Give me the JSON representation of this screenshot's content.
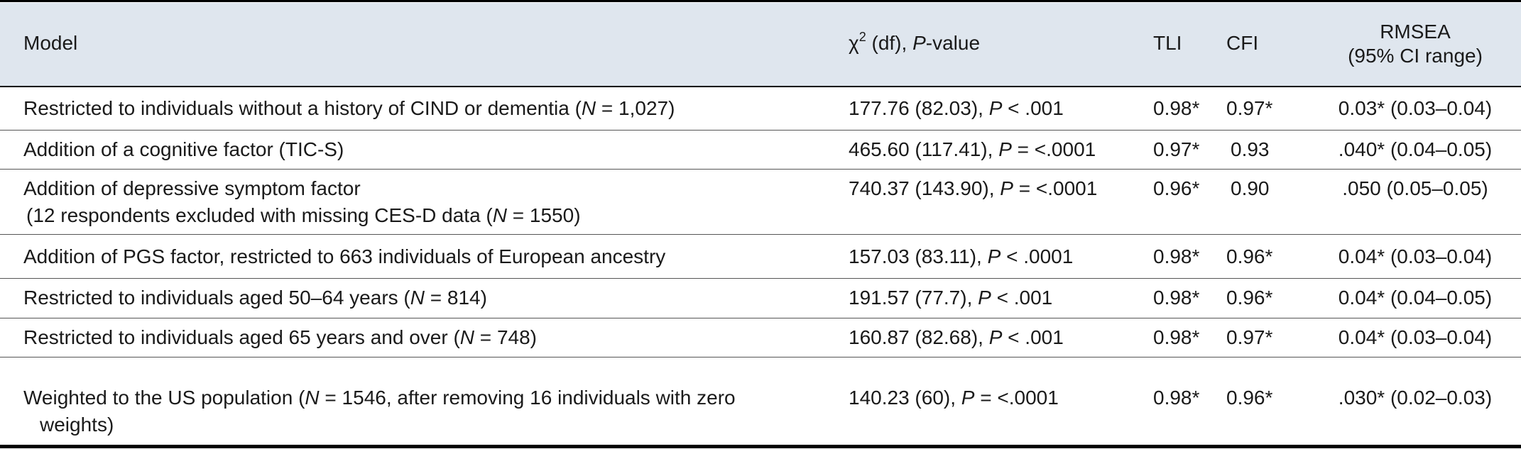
{
  "headers": {
    "model": "Model",
    "chi_symbol": "χ",
    "chi_sup": "2",
    "chi_df": " (df), ",
    "chi_p": "P",
    "chi_value": "-value",
    "tli": "TLI",
    "cfi": "CFI",
    "rmsea_line1": "RMSEA",
    "rmsea_line2": "(95% CI range)"
  },
  "rows": [
    {
      "model_pre": "Restricted to individuals without a history of CIND or dementia (",
      "model_n": "N",
      "model_post": " = 1,027)",
      "chi_pre": "177.76 (82.03), ",
      "chi_p": "P",
      "chi_post": " < .001",
      "tli": "0.98*",
      "cfi": "0.97*",
      "rmsea": "0.03* (0.03–0.04)"
    },
    {
      "model": "Addition of a cognitive factor (TIC-S)",
      "chi_pre": "465.60 (117.41), ",
      "chi_p": "P",
      "chi_post": " = <.0001",
      "tli": "0.97*",
      "cfi": "0.93",
      "rmsea": ".040* (0.04–0.05)"
    },
    {
      "model_line1": "Addition of depressive symptom factor",
      "model_line2_pre": "(12 respondents excluded with missing CES-D data (",
      "model_line2_n": "N",
      "model_line2_post": " = 1550)",
      "chi_pre": "740.37 (143.90), ",
      "chi_p": "P",
      "chi_post": " = <.0001",
      "tli": "0.96*",
      "cfi": "0.90",
      "rmsea": ".050 (0.05–0.05)"
    },
    {
      "model": "Addition of PGS factor, restricted to 663 individuals of European ancestry",
      "chi_pre": "157.03 (83.11), ",
      "chi_p": "P",
      "chi_post": " < .0001",
      "tli": "0.98*",
      "cfi": "0.96*",
      "rmsea": "0.04* (0.03–0.04)"
    },
    {
      "model_pre": "Restricted to individuals aged 50–64 years (",
      "model_n": "N",
      "model_post": " = 814)",
      "chi_pre": "191.57 (77.7), ",
      "chi_p": "P",
      "chi_post": " < .001",
      "tli": "0.98*",
      "cfi": "0.96*",
      "rmsea": "0.04* (0.04–0.05)"
    },
    {
      "model_pre": "Restricted to individuals aged 65 years and over (",
      "model_n": "N",
      "model_post": " = 748)",
      "chi_pre": "160.87 (82.68), ",
      "chi_p": "P",
      "chi_post": " < .001",
      "tli": "0.98*",
      "cfi": "0.97*",
      "rmsea": "0.04* (0.03–0.04)"
    },
    {
      "model_pre": "Weighted to the US population (",
      "model_n": "N",
      "model_post": " = 1546, after removing 16 individuals with zero",
      "model_line2": "weights)",
      "chi_pre": "140.23 (60), ",
      "chi_p": "P",
      "chi_post": " = <.0001",
      "tli": "0.98*",
      "cfi": "0.96*",
      "rmsea": ".030* (0.02–0.03)"
    }
  ]
}
